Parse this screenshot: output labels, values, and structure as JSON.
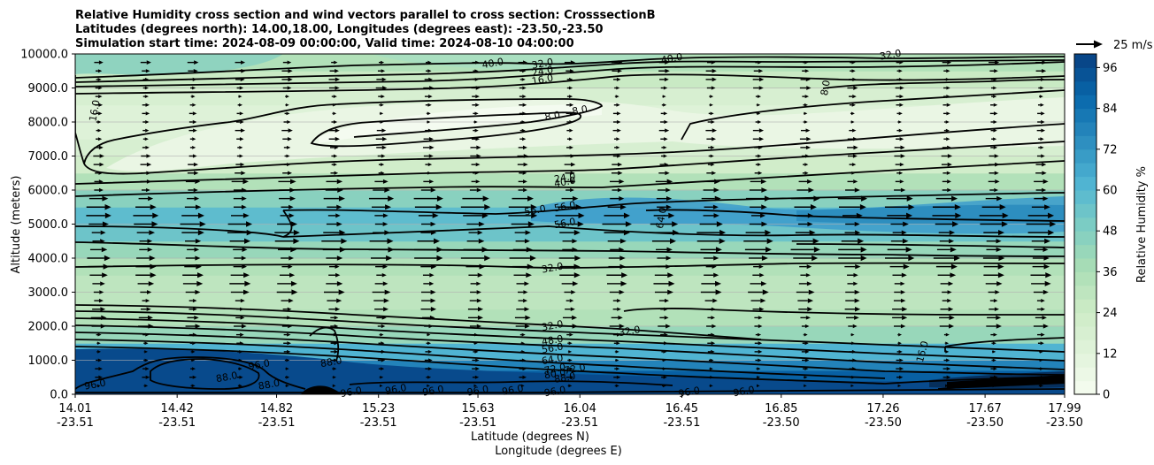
{
  "chart_data": {
    "type": "heatmap",
    "title": [
      "Relative Humidity cross section and wind vectors parallel to cross section: CrosssectionB",
      "Latitudes (degrees north): 14.00,18.00, Longitudes (degrees east): -23.50,-23.50",
      "Simulation start time: 2024-08-09 00:00:00, Valid time: 2024-08-10 04:00:00"
    ],
    "ylabel": "Altitude (meters)",
    "xlabel_lat": "Latitude (degrees N)",
    "xlabel_lon": "Longitude (degrees E)",
    "ylim": [
      0,
      10000
    ],
    "y_ticks": [
      "0.0",
      "1000.0",
      "2000.0",
      "3000.0",
      "4000.0",
      "5000.0",
      "6000.0",
      "7000.0",
      "8000.0",
      "9000.0",
      "10000.0"
    ],
    "x_ticks_lat": [
      "14.01",
      "14.42",
      "14.82",
      "15.23",
      "15.63",
      "16.04",
      "16.45",
      "16.85",
      "17.26",
      "17.67",
      "17.99"
    ],
    "x_ticks_lon": [
      "-23.51",
      "-23.51",
      "-23.51",
      "-23.51",
      "-23.51",
      "-23.51",
      "-23.51",
      "-23.50",
      "-23.50",
      "-23.50",
      "-23.50"
    ],
    "colorbar": {
      "label": "Relative Humidity %",
      "range": [
        0,
        100
      ],
      "step": 4,
      "ticks": [
        "0",
        "12",
        "24",
        "36",
        "48",
        "60",
        "72",
        "84",
        "96"
      ]
    },
    "wind_key": {
      "label": "25 m/s",
      "speed": 25
    },
    "grid": true,
    "humidity_profile": {
      "altitudes_m": [
        0,
        300,
        700,
        1000,
        1500,
        2000,
        2500,
        3000,
        3500,
        4000,
        4500,
        5000,
        5500,
        6000,
        6500,
        7000,
        7500,
        8000,
        8500,
        9000,
        9500,
        10000
      ],
      "rh_percent": [
        96,
        94,
        85,
        72,
        50,
        36,
        30,
        30,
        32,
        36,
        48,
        60,
        54,
        38,
        26,
        20,
        14,
        10,
        14,
        18,
        30,
        40
      ]
    },
    "contour_labels": [
      {
        "text": "40.0",
        "lat": 15.69,
        "alt": 9710
      },
      {
        "text": "32.0",
        "lat": 15.89,
        "alt": 9700
      },
      {
        "text": "24.0",
        "lat": 15.89,
        "alt": 9470
      },
      {
        "text": "16.0",
        "lat": 15.89,
        "alt": 9230
      },
      {
        "text": "40.0",
        "lat": 16.41,
        "alt": 9850
      },
      {
        "text": "32.0",
        "lat": 17.29,
        "alt": 9960
      },
      {
        "text": "8.0",
        "lat": 17.03,
        "alt": 9000
      },
      {
        "text": "16.0",
        "lat": 14.09,
        "alt": 8330
      },
      {
        "text": "8.0",
        "lat": 15.93,
        "alt": 8160
      },
      {
        "text": "8.0",
        "lat": 16.04,
        "alt": 8330
      },
      {
        "text": "24.0",
        "lat": 15.98,
        "alt": 6350
      },
      {
        "text": "40.0",
        "lat": 15.98,
        "alt": 6220
      },
      {
        "text": "56.0",
        "lat": 15.86,
        "alt": 5390
      },
      {
        "text": "56.0",
        "lat": 15.98,
        "alt": 5500
      },
      {
        "text": "56.0",
        "lat": 15.98,
        "alt": 5010
      },
      {
        "text": "64.0",
        "lat": 16.37,
        "alt": 5180
      },
      {
        "text": "32.0",
        "lat": 15.93,
        "alt": 3700
      },
      {
        "text": "32.0",
        "lat": 15.93,
        "alt": 2000
      },
      {
        "text": "32.0",
        "lat": 16.24,
        "alt": 1840
      },
      {
        "text": "48.0",
        "lat": 15.93,
        "alt": 1570
      },
      {
        "text": "56.0",
        "lat": 15.93,
        "alt": 1340
      },
      {
        "text": "64.0",
        "lat": 15.93,
        "alt": 1010
      },
      {
        "text": "72.0",
        "lat": 15.94,
        "alt": 730
      },
      {
        "text": "72.0",
        "lat": 16.02,
        "alt": 730
      },
      {
        "text": "80.0",
        "lat": 15.94,
        "alt": 590
      },
      {
        "text": "88.0",
        "lat": 15.98,
        "alt": 470
      },
      {
        "text": "88.0",
        "lat": 14.62,
        "alt": 490
      },
      {
        "text": "96.0",
        "lat": 14.75,
        "alt": 850
      },
      {
        "text": "88.0",
        "lat": 14.79,
        "alt": 270
      },
      {
        "text": "88.0",
        "lat": 15.04,
        "alt": 930
      },
      {
        "text": "96.0",
        "lat": 14.09,
        "alt": 270
      },
      {
        "text": "96.0",
        "lat": 15.12,
        "alt": 50
      },
      {
        "text": "96.0",
        "lat": 15.3,
        "alt": 130
      },
      {
        "text": "96.0",
        "lat": 15.45,
        "alt": 90
      },
      {
        "text": "96.0",
        "lat": 15.63,
        "alt": 90
      },
      {
        "text": "96.0",
        "lat": 15.77,
        "alt": 110
      },
      {
        "text": "96.0",
        "lat": 15.94,
        "alt": 70
      },
      {
        "text": "96.0",
        "lat": 16.48,
        "alt": 50
      },
      {
        "text": "96.0",
        "lat": 16.7,
        "alt": 70
      },
      {
        "text": "16.0",
        "lat": 17.42,
        "alt": 1250
      }
    ]
  }
}
